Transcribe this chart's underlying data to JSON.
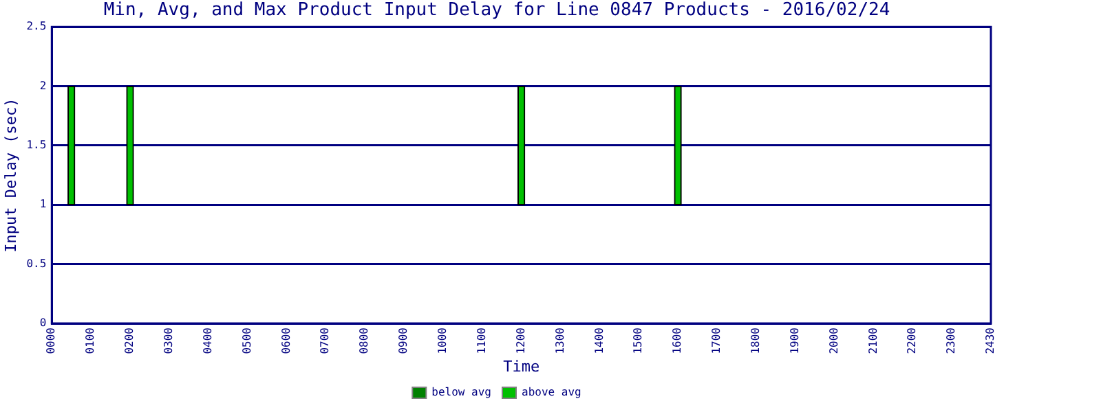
{
  "chart_data": {
    "type": "bar",
    "title": "Min, Avg, and Max Product Input Delay for Line 0847 Products - 2016/02/24",
    "xlabel": "Time",
    "ylabel": "Input Delay (sec)",
    "categories": [
      "0000",
      null,
      "0100",
      null,
      "0200",
      null,
      "0300",
      null,
      "0400",
      null,
      "0500",
      null,
      "0600",
      null,
      "0700",
      null,
      "0800",
      null,
      "0900",
      null,
      "1000",
      null,
      "1100",
      null,
      "1200",
      null,
      "1300",
      null,
      "1400",
      null,
      "1500",
      null,
      "1600",
      null,
      "1700",
      null,
      "1800",
      null,
      "1900",
      null,
      "2000",
      null,
      "2100",
      null,
      "2200",
      null,
      "2300",
      null,
      "2430"
    ],
    "series": [
      {
        "name": "below avg",
        "color": "#008000",
        "values": [
          null,
          null,
          null,
          null,
          null,
          null,
          null,
          null,
          null,
          null,
          null,
          null,
          null,
          null,
          null,
          null,
          null,
          null,
          null,
          null,
          null,
          null,
          null,
          null,
          null,
          null,
          null,
          null,
          null,
          null,
          null,
          null,
          null,
          null,
          null,
          null,
          null,
          null,
          null,
          null,
          null,
          null,
          null,
          null,
          null,
          null,
          null,
          null,
          null
        ]
      },
      {
        "name": "above avg",
        "color": "#00c000",
        "base": [
          null,
          1,
          null,
          null,
          1,
          null,
          null,
          null,
          null,
          null,
          null,
          null,
          null,
          null,
          null,
          null,
          null,
          null,
          null,
          null,
          null,
          null,
          null,
          null,
          1,
          null,
          null,
          null,
          null,
          null,
          null,
          null,
          1,
          null,
          null,
          null,
          null,
          null,
          null,
          null,
          null,
          null,
          null,
          null,
          null,
          null,
          null,
          null,
          null
        ],
        "values": [
          null,
          1,
          null,
          null,
          1,
          null,
          null,
          null,
          null,
          null,
          null,
          null,
          null,
          null,
          null,
          null,
          null,
          null,
          null,
          null,
          null,
          null,
          null,
          null,
          1,
          null,
          null,
          null,
          null,
          null,
          null,
          null,
          1,
          null,
          null,
          null,
          null,
          null,
          null,
          null,
          null,
          null,
          null,
          null,
          null,
          null,
          null,
          null,
          null
        ]
      }
    ],
    "ylim": [
      0,
      2.5
    ],
    "yticks": [
      0,
      0.5,
      1,
      1.5,
      2,
      2.5
    ],
    "grid": "y",
    "legend": "bottom"
  }
}
